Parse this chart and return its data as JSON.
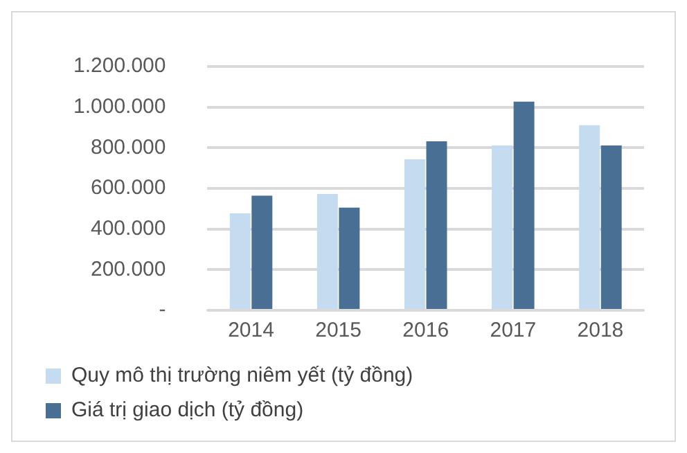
{
  "chart_data": {
    "type": "bar",
    "categories": [
      "2014",
      "2015",
      "2016",
      "2017",
      "2018"
    ],
    "series": [
      {
        "name": "Quy mô thị trường niêm yết (tỷ đồng)",
        "color": "#c5dbf0",
        "values": [
          477000,
          573000,
          743000,
          811000,
          911000
        ]
      },
      {
        "name": "Giá trị giao dịch (tỷ đồng)",
        "color": "#4a6f95",
        "values": [
          564000,
          505000,
          832000,
          1027000,
          811000
        ]
      }
    ],
    "ylim": [
      0,
      1200000
    ],
    "yticks": [
      {
        "value": 0,
        "label": "-"
      },
      {
        "value": 200000,
        "label": "200.000"
      },
      {
        "value": 400000,
        "label": "400.000"
      },
      {
        "value": 600000,
        "label": "600.000"
      },
      {
        "value": 800000,
        "label": "800.000"
      },
      {
        "value": 1000000,
        "label": "1.000.000"
      },
      {
        "value": 1200000,
        "label": "1.200.000"
      }
    ],
    "grid": "y",
    "legend": "bottom"
  }
}
